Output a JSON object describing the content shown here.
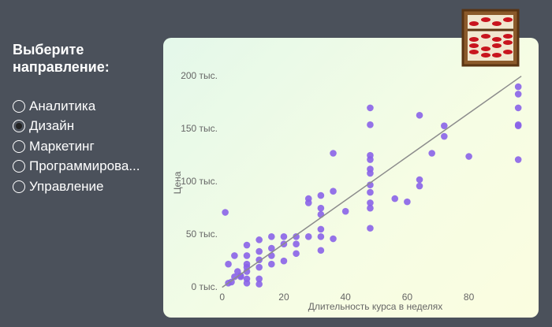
{
  "sidebar": {
    "title": "Выберите направление:",
    "options": [
      "Аналитика",
      "Дизайн",
      "Маркетинг",
      "Программирова...",
      "Управление"
    ],
    "selected": 1
  },
  "chart_data": {
    "type": "scatter",
    "x_label": "Длительность курса в неделях",
    "y_label": "Цена",
    "color": "#8a63e8",
    "x": [
      1,
      2,
      2,
      3,
      4,
      4,
      5,
      6,
      6,
      8,
      8,
      8,
      8,
      8,
      8,
      8,
      12,
      12,
      12,
      12,
      12,
      12,
      16,
      16,
      16,
      16,
      20,
      20,
      20,
      24,
      24,
      24,
      28,
      28,
      28,
      32,
      32,
      32,
      32,
      32,
      32,
      36,
      36,
      36,
      40,
      48,
      48,
      48,
      48,
      48,
      48,
      48,
      48,
      48,
      48,
      48,
      56,
      60,
      64,
      64,
      64,
      68,
      72,
      72,
      80,
      96,
      96,
      96,
      96,
      96,
      96
    ],
    "values": [
      71000,
      4000,
      22000,
      5000,
      30000,
      10000,
      15000,
      11000,
      10000,
      19000,
      30000,
      40000,
      8000,
      15000,
      22000,
      4000,
      45000,
      34000,
      26000,
      19000,
      8000,
      3000,
      48000,
      37000,
      30000,
      22000,
      48000,
      41000,
      25000,
      48000,
      41000,
      32000,
      84000,
      80000,
      48000,
      87000,
      75000,
      69000,
      55000,
      48000,
      35000,
      127000,
      91000,
      46000,
      72000,
      170000,
      154000,
      125000,
      121000,
      112000,
      108000,
      97000,
      90000,
      80000,
      75000,
      56000,
      84000,
      81000,
      163000,
      102000,
      96000,
      127000,
      153000,
      143000,
      124000,
      190000,
      183000,
      170000,
      154000,
      153000,
      121000
    ],
    "trendline": {
      "x": [
        0,
        97
      ],
      "values": [
        0,
        200000
      ],
      "color": "#8c8c8c"
    },
    "xlim": [
      -3,
      98
    ],
    "ylim": [
      -4000,
      205000
    ],
    "xticks": [
      0,
      20,
      40,
      60,
      80
    ],
    "yticks": [
      {
        "value": 0,
        "label": "0 тыс."
      },
      {
        "value": 50000,
        "label": "50 тыс."
      },
      {
        "value": 100000,
        "label": "100 тыс."
      },
      {
        "value": 150000,
        "label": "150 тыс."
      },
      {
        "value": 200000,
        "label": "200 тыс."
      }
    ]
  }
}
